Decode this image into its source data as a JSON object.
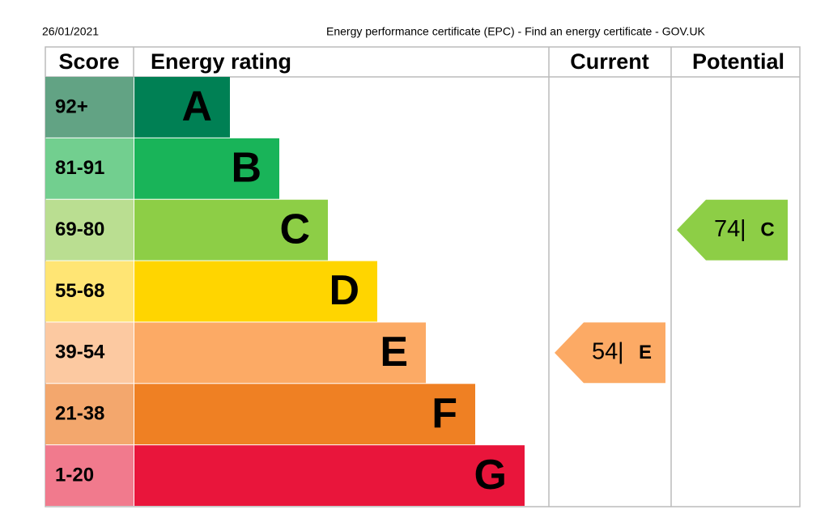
{
  "header": {
    "date": "26/01/2021",
    "title": "Energy performance certificate (EPC) - Find an energy certificate - GOV.UK"
  },
  "table": {
    "columns": [
      "Score",
      "Energy rating",
      "Current",
      "Potential"
    ],
    "bands": [
      {
        "score": "92+",
        "rating": "A",
        "color": "#008054",
        "score_color": "#62a384"
      },
      {
        "score": "81-91",
        "rating": "B",
        "color": "#19b459",
        "score_color": "#72cf8f"
      },
      {
        "score": "69-80",
        "rating": "C",
        "color": "#8dce46",
        "score_color": "#bade91"
      },
      {
        "score": "55-68",
        "rating": "D",
        "color": "#ffd500",
        "score_color": "#ffe574"
      },
      {
        "score": "39-54",
        "rating": "E",
        "color": "#fcaa65",
        "score_color": "#fcc9a1"
      },
      {
        "score": "21-38",
        "rating": "F",
        "color": "#ef8023",
        "score_color": "#f3a76d"
      },
      {
        "score": "1-20",
        "rating": "G",
        "color": "#e9153b",
        "score_color": "#f17a8d"
      }
    ]
  },
  "current": {
    "score": 54,
    "separator": "|",
    "rating": "E"
  },
  "potential": {
    "score": 74,
    "separator": "|",
    "rating": "C"
  }
}
